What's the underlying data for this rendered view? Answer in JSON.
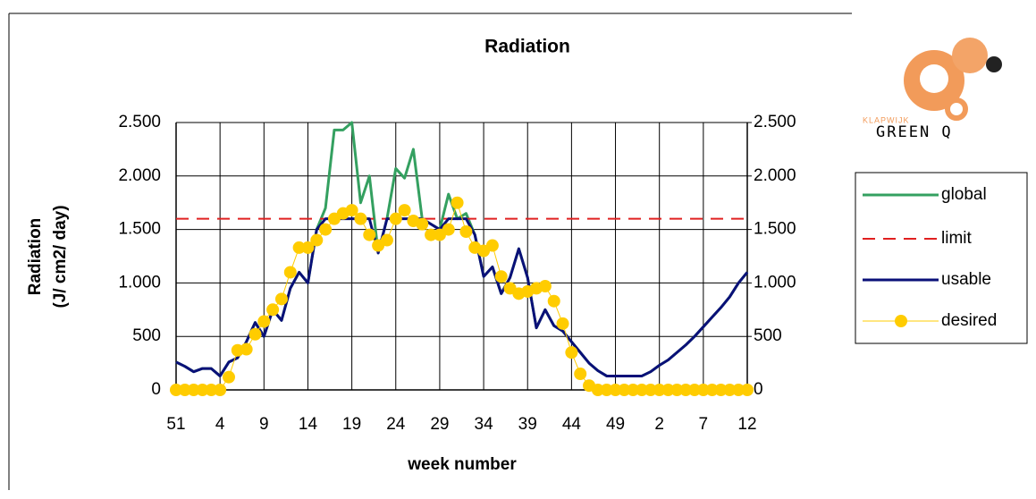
{
  "chart_data": {
    "type": "line",
    "title": "Radiation",
    "ylabel": [
      "Radiation",
      "(J/ cm2/ day)"
    ],
    "xlabel": "week number",
    "categories": [
      "51",
      null,
      null,
      null,
      null,
      "4",
      null,
      null,
      null,
      null,
      "9",
      null,
      null,
      null,
      null,
      "14",
      null,
      null,
      null,
      null,
      "19",
      null,
      null,
      null,
      null,
      "24",
      null,
      null,
      null,
      null,
      "29",
      null,
      null,
      null,
      null,
      "34",
      null,
      null,
      null,
      null,
      "39",
      null,
      null,
      null,
      null,
      "44",
      null,
      null,
      null,
      null,
      "49",
      null,
      null,
      null,
      null,
      "2",
      null,
      null,
      null,
      null,
      "7",
      null,
      null,
      null,
      null,
      "12"
    ],
    "ylim": [
      0,
      2500
    ],
    "yticks": [
      0,
      500,
      {
        "value": 1000,
        "label": "1.000"
      },
      {
        "value": 1500,
        "label": "1.500"
      },
      {
        "value": 2000,
        "label": "2.000"
      },
      {
        "value": 2500,
        "label": "2.500"
      }
    ],
    "y2lim": [
      0,
      2500
    ],
    "y2ticks": [
      0,
      500,
      {
        "value": 1000,
        "label": "1.000"
      },
      {
        "value": 1500,
        "label": "1.500"
      },
      {
        "value": 2000,
        "label": "2.000"
      },
      {
        "value": 2500,
        "label": "2.500"
      }
    ],
    "grid": true,
    "legend": "right",
    "series": [
      {
        "name": "global",
        "color": "#34a060",
        "style": "solid",
        "marker": false,
        "values": [
          260,
          220,
          170,
          200,
          200,
          130,
          260,
          300,
          450,
          630,
          500,
          750,
          650,
          950,
          1100,
          1000,
          1500,
          1700,
          2430,
          2430,
          2500,
          1750,
          2000,
          1280,
          1600,
          2070,
          1980,
          2250,
          1600,
          1550,
          1500,
          1830,
          1600,
          1650,
          1450,
          1060,
          1150,
          900,
          1050,
          1320,
          1050,
          580,
          750,
          600,
          550,
          450,
          350,
          250,
          180,
          130,
          130,
          130,
          130,
          130,
          170,
          230,
          280,
          350,
          420,
          500,
          590,
          680,
          770,
          870,
          1000,
          1100
        ]
      },
      {
        "name": "limit",
        "color": "#e02020",
        "style": "dashed",
        "marker": false,
        "values": [
          1600,
          1600,
          1600,
          1600,
          1600,
          1600,
          1600,
          1600,
          1600,
          1600,
          1600,
          1600,
          1600,
          1600,
          1600,
          1600,
          1600,
          1600,
          1600,
          1600,
          1600,
          1600,
          1600,
          1600,
          1600,
          1600,
          1600,
          1600,
          1600,
          1600,
          1600,
          1600,
          1600,
          1600,
          1600,
          1600,
          1600,
          1600,
          1600,
          1600,
          1600,
          1600,
          1600,
          1600,
          1600,
          1600,
          1600,
          1600,
          1600,
          1600,
          1600,
          1600,
          1600,
          1600,
          1600,
          1600,
          1600,
          1600,
          1600,
          1600,
          1600,
          1600,
          1600,
          1600,
          1600,
          1600
        ]
      },
      {
        "name": "usable",
        "color": "#0a1078",
        "style": "solid",
        "marker": false,
        "values": [
          260,
          220,
          170,
          200,
          200,
          130,
          260,
          300,
          450,
          630,
          500,
          750,
          650,
          950,
          1100,
          1000,
          1500,
          1600,
          1600,
          1600,
          1600,
          1600,
          1600,
          1280,
          1600,
          1600,
          1600,
          1600,
          1600,
          1550,
          1500,
          1600,
          1600,
          1600,
          1450,
          1060,
          1150,
          900,
          1050,
          1320,
          1050,
          580,
          750,
          600,
          550,
          450,
          350,
          250,
          180,
          130,
          130,
          130,
          130,
          130,
          170,
          230,
          280,
          350,
          420,
          500,
          590,
          680,
          770,
          870,
          1000,
          1100
        ]
      },
      {
        "name": "desired",
        "color": "#ffcc00",
        "style": "thin",
        "marker": true,
        "values": [
          0,
          0,
          0,
          0,
          0,
          0,
          120,
          370,
          380,
          520,
          640,
          750,
          850,
          1100,
          1330,
          1330,
          1400,
          1500,
          1600,
          1650,
          1680,
          1600,
          1450,
          1350,
          1400,
          1600,
          1680,
          1580,
          1550,
          1450,
          1450,
          1500,
          1750,
          1480,
          1330,
          1300,
          1350,
          1060,
          950,
          900,
          920,
          950,
          970,
          830,
          620,
          350,
          150,
          40,
          0,
          0,
          0,
          0,
          0,
          0,
          0,
          0,
          0,
          0,
          0,
          0,
          0,
          0,
          0,
          0,
          0,
          0
        ]
      }
    ]
  },
  "logo": {
    "top": "KLAPWIJK",
    "bottom": "GREEN Q"
  }
}
